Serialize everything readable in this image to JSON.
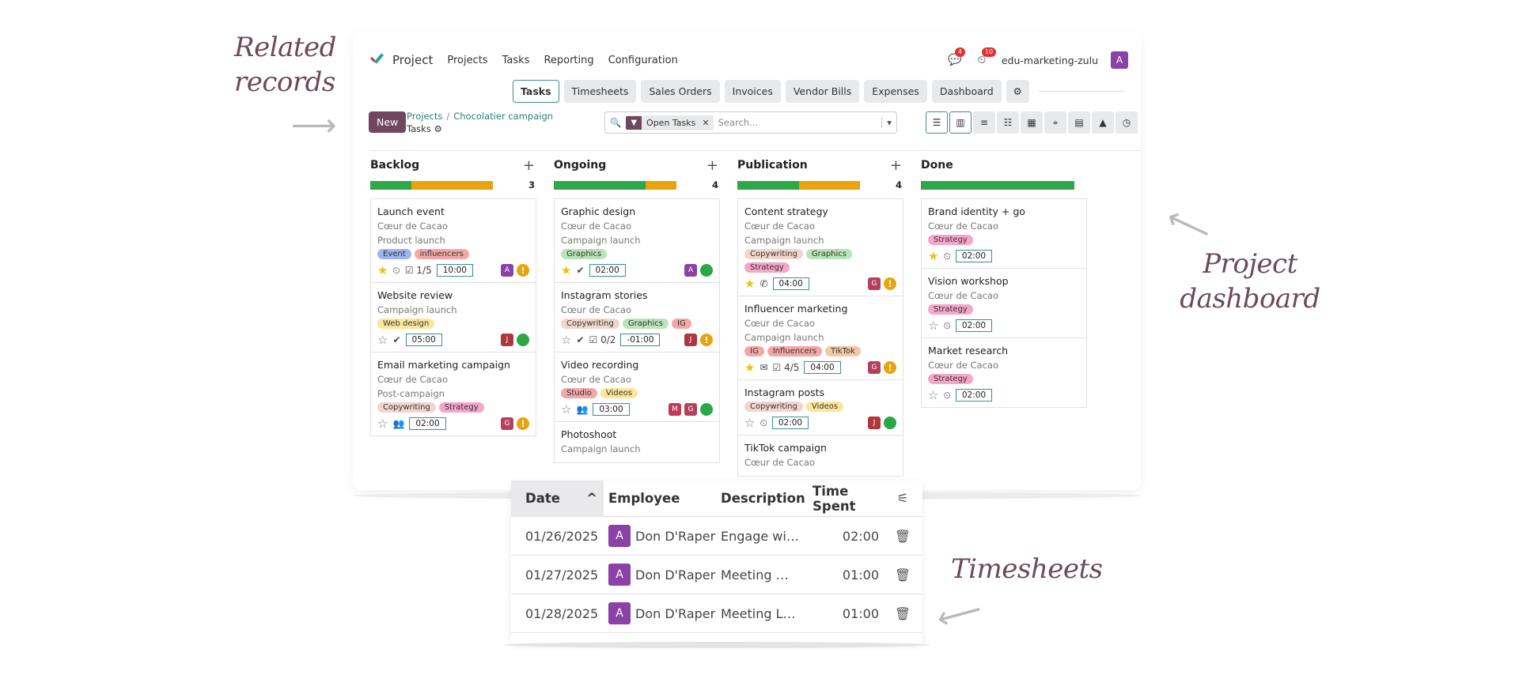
{
  "annotations": {
    "related_records": "Related records",
    "project_dashboard": "Project dashboard",
    "timesheets": "Timesheets"
  },
  "topbar": {
    "app_name": "Project",
    "menu": [
      "Projects",
      "Tasks",
      "Reporting",
      "Configuration"
    ],
    "messages_badge": "4",
    "activities_badge": "10",
    "company": "edu-marketing-zulu",
    "avatar": "A"
  },
  "tabs": [
    "Tasks",
    "Timesheets",
    "Sales Orders",
    "Invoices",
    "Vendor Bills",
    "Expenses",
    "Dashboard"
  ],
  "control": {
    "new_label": "New",
    "breadcrumb_projects": "Projects",
    "breadcrumb_sep": "/",
    "breadcrumb_project": "Chocolatier campaign",
    "breadcrumb_sub": "Tasks",
    "facet_label": "Open Tasks",
    "search_placeholder": "Search..."
  },
  "columns": [
    {
      "name": "Backlog",
      "count": "3",
      "green_pct": 27,
      "orange_pct": 53,
      "cards": [
        {
          "title": "Launch event",
          "lines": [
            "Cœur de Cacao",
            "Product launch"
          ],
          "tags": [
            {
              "t": "Event",
              "c": "#9fb3f0"
            },
            {
              "t": "influencers",
              "c": "#f4a7a7"
            }
          ],
          "star": true,
          "icons": [
            "⏲",
            "☑ 1/5"
          ],
          "hours": "10:00",
          "avatars": [
            {
              "l": "A",
              "c": "#8b41a6"
            }
          ],
          "status": "warn"
        },
        {
          "title": "Website review",
          "lines": [
            "Campaign launch"
          ],
          "tags": [
            {
              "t": "Web design",
              "c": "#fbe69a"
            }
          ],
          "star": false,
          "icons": [
            "✔"
          ],
          "hours": "05:00",
          "avatars": [
            {
              "l": "J",
              "c": "#b0363e"
            }
          ],
          "status": "green"
        },
        {
          "title": "Email marketing campaign",
          "lines": [
            "Cœur de Cacao",
            "Post-campaign"
          ],
          "tags": [
            {
              "t": "Copywriting",
              "c": "#f2d6cc"
            },
            {
              "t": "Strategy",
              "c": "#f6a6c9"
            }
          ],
          "star": false,
          "icons": [
            "👥"
          ],
          "hours": "02:00",
          "avatars": [
            {
              "l": "G",
              "c": "#b5405c"
            }
          ],
          "status": "warn"
        }
      ]
    },
    {
      "name": "Ongoing",
      "count": "4",
      "green_pct": 60,
      "orange_pct": 20,
      "cards": [
        {
          "title": "Graphic design",
          "lines": [
            "Cœur de Cacao",
            "Campaign launch"
          ],
          "tags": [
            {
              "t": "Graphics",
              "c": "#b9e3b9"
            }
          ],
          "star": true,
          "icons": [
            "✔"
          ],
          "hours": "02:00",
          "avatars": [
            {
              "l": "A",
              "c": "#8b41a6"
            }
          ],
          "status": "green"
        },
        {
          "title": "Instagram stories",
          "lines": [
            "Cœur de Cacao"
          ],
          "tags": [
            {
              "t": "Copywriting",
              "c": "#f2d6cc"
            },
            {
              "t": "Graphics",
              "c": "#b9e3b9"
            },
            {
              "t": "IG",
              "c": "#f4a7a7"
            }
          ],
          "star": false,
          "icons": [
            "✔",
            "☑ 0/2"
          ],
          "hours": "-01:00",
          "avatars": [
            {
              "l": "J",
              "c": "#b0363e"
            }
          ],
          "status": "warn"
        },
        {
          "title": "Video recording",
          "lines": [
            "Cœur de Cacao"
          ],
          "tags": [
            {
              "t": "Studio",
              "c": "#f4a7a7"
            },
            {
              "t": "Videos",
              "c": "#fbe69a"
            }
          ],
          "star": false,
          "icons": [
            "👥"
          ],
          "hours": "03:00",
          "avatars": [
            {
              "l": "M",
              "c": "#c0395a"
            },
            {
              "l": "G",
              "c": "#b5405c"
            }
          ],
          "status": "green"
        },
        {
          "title": "Photoshoot",
          "lines": [
            "Campaign launch"
          ],
          "tags": [],
          "star": null,
          "icons": [],
          "hours": "",
          "avatars": [],
          "status": ""
        }
      ]
    },
    {
      "name": "Publication",
      "count": "4",
      "green_pct": 40,
      "orange_pct": 40,
      "cards": [
        {
          "title": "Content strategy",
          "lines": [
            "Cœur de Cacao",
            "Campaign launch"
          ],
          "tags": [
            {
              "t": "Copywriting",
              "c": "#f2d6cc"
            },
            {
              "t": "Graphics",
              "c": "#b9e3b9"
            },
            {
              "t": "Strategy",
              "c": "#f6a6c9"
            }
          ],
          "star": true,
          "icons": [
            "✆"
          ],
          "hours": "04:00",
          "avatars": [
            {
              "l": "G",
              "c": "#b5405c"
            }
          ],
          "status": "warn"
        },
        {
          "title": "Influencer marketing",
          "lines": [
            "Cœur de Cacao",
            "Campaign launch"
          ],
          "tags": [
            {
              "t": "IG",
              "c": "#f4a7a7"
            },
            {
              "t": "Influencers",
              "c": "#f4a7a7"
            },
            {
              "t": "TikTok",
              "c": "#f3c9a4"
            }
          ],
          "star": true,
          "icons": [
            "✉",
            "☑ 4/5"
          ],
          "hours": "04:00",
          "avatars": [
            {
              "l": "G",
              "c": "#b5405c"
            }
          ],
          "status": "warn"
        },
        {
          "title": "Instagram posts",
          "lines": [],
          "tags": [
            {
              "t": "Copywriting",
              "c": "#f2d6cc"
            },
            {
              "t": "Videos",
              "c": "#fbe69a"
            }
          ],
          "star": false,
          "icons": [
            "⏲"
          ],
          "hours": "02:00",
          "avatars": [
            {
              "l": "J",
              "c": "#b0363e"
            }
          ],
          "status": "green"
        },
        {
          "title": "TikTok campaign",
          "lines": [
            "Cœur de Cacao"
          ],
          "tags": [],
          "star": null,
          "icons": [],
          "hours": "",
          "avatars": [],
          "status": ""
        }
      ]
    },
    {
      "name": "Done",
      "count": "",
      "green_pct": 100,
      "orange_pct": 0,
      "cards": [
        {
          "title": "Brand identity + go",
          "lines": [
            "Cœur de Cacao"
          ],
          "tags": [
            {
              "t": "Strategy",
              "c": "#f6a6c9"
            }
          ],
          "star": true,
          "icons": [
            "⏲"
          ],
          "hours": "02:00",
          "avatars": [],
          "status": ""
        },
        {
          "title": "Vision workshop",
          "lines": [
            "Cœur de Cacao"
          ],
          "tags": [
            {
              "t": "Strategy",
              "c": "#f6a6c9"
            }
          ],
          "star": false,
          "icons": [
            "⏲"
          ],
          "hours": "02:00",
          "avatars": [],
          "status": ""
        },
        {
          "title": "Market research",
          "lines": [
            "Cœur de Cacao"
          ],
          "tags": [
            {
              "t": "Strategy",
              "c": "#f6a6c9"
            }
          ],
          "star": false,
          "icons": [
            "⏲"
          ],
          "hours": "02:00",
          "avatars": [],
          "status": ""
        }
      ]
    }
  ],
  "timesheet": {
    "headers": {
      "date": "Date",
      "employee": "Employee",
      "description": "Description",
      "time": "Time Spent"
    },
    "rows": [
      {
        "date": "01/26/2025",
        "avatar": "A",
        "employee": "Don D'Raper",
        "description": "Engage wi…",
        "time": "02:00"
      },
      {
        "date": "01/27/2025",
        "avatar": "A",
        "employee": "Don D'Raper",
        "description": "Meeting …",
        "time": "01:00"
      },
      {
        "date": "01/28/2025",
        "avatar": "A",
        "employee": "Don D'Raper",
        "description": "Meeting L…",
        "time": "01:00"
      }
    ]
  }
}
